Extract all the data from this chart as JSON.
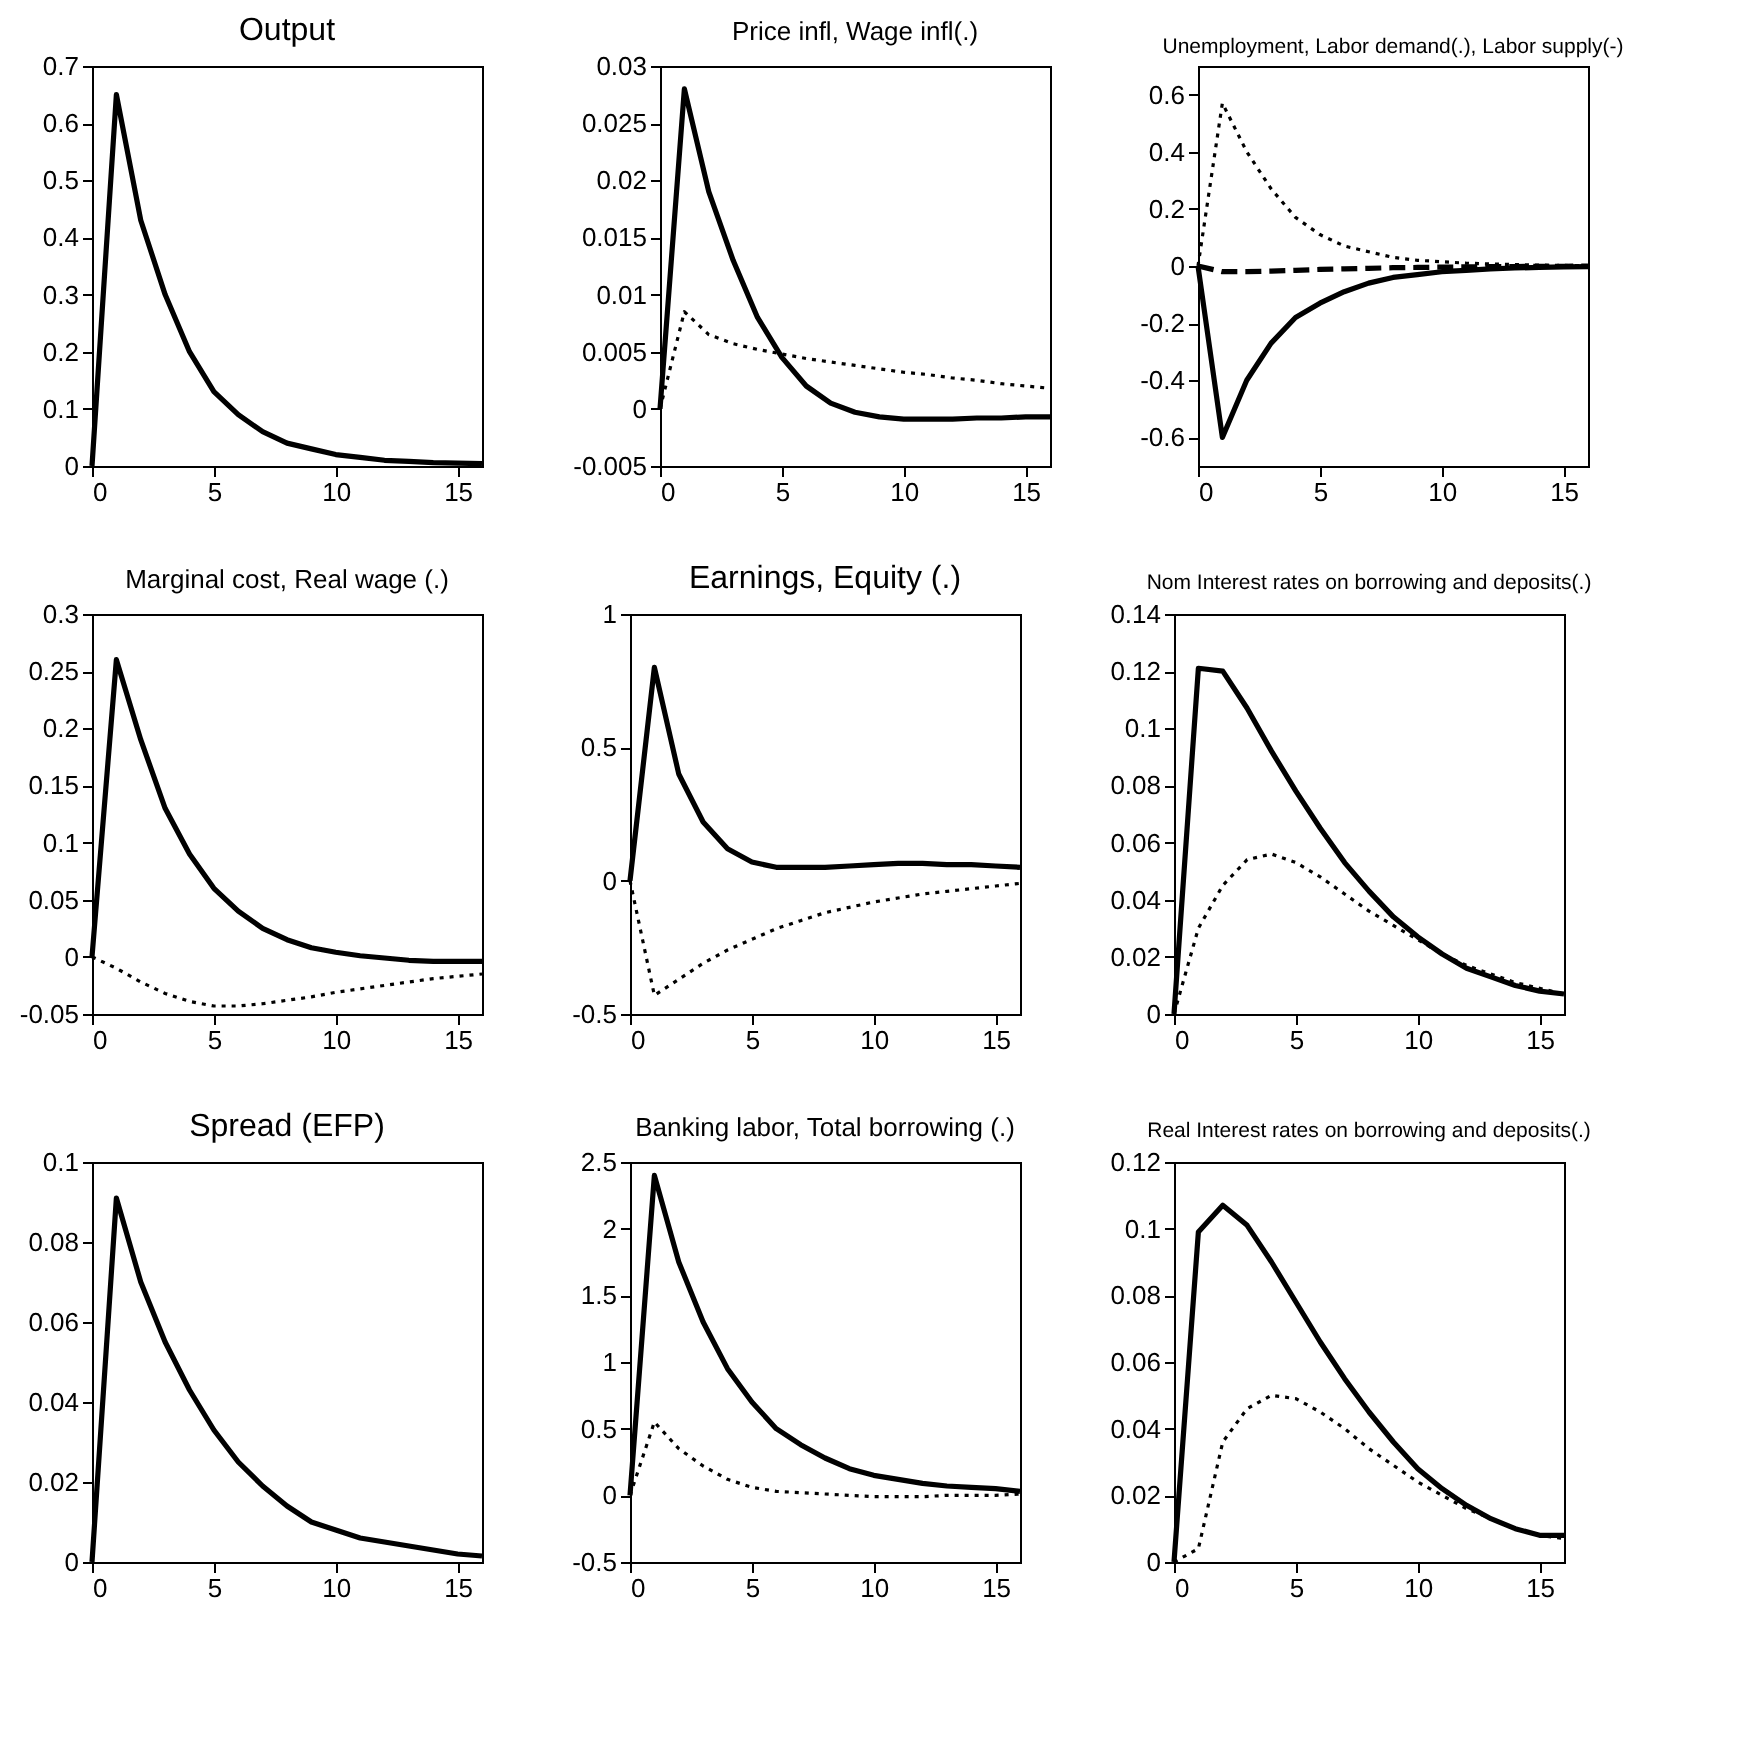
{
  "chart_data": [
    {
      "type": "line",
      "title": "Output",
      "x": [
        0,
        1,
        2,
        3,
        4,
        5,
        6,
        7,
        8,
        9,
        10,
        11,
        12,
        13,
        14,
        15,
        16
      ],
      "xlim": [
        0,
        16
      ],
      "xticks": [
        0,
        5,
        10,
        15
      ],
      "ylim": [
        0,
        0.7
      ],
      "yticks": [
        0,
        0.1,
        0.2,
        0.3,
        0.4,
        0.5,
        0.6,
        0.7
      ],
      "grid": false,
      "series": [
        {
          "color": "#000000",
          "line_style": "solid",
          "values": [
            0,
            0.65,
            0.43,
            0.3,
            0.2,
            0.13,
            0.09,
            0.06,
            0.04,
            0.03,
            0.02,
            0.015,
            0.01,
            0.008,
            0.006,
            0.005,
            0.004
          ]
        }
      ]
    },
    {
      "type": "line",
      "title": "Price infl, Wage infl(.)",
      "x": [
        0,
        1,
        2,
        3,
        4,
        5,
        6,
        7,
        8,
        9,
        10,
        11,
        12,
        13,
        14,
        15,
        16
      ],
      "xlim": [
        0,
        16
      ],
      "xticks": [
        0,
        5,
        10,
        15
      ],
      "ylim": [
        -0.005,
        0.03
      ],
      "yticks": [
        -0.005,
        0,
        0.005,
        0.01,
        0.015,
        0.02,
        0.025,
        0.03
      ],
      "grid": false,
      "series": [
        {
          "color": "#000000",
          "line_style": "solid",
          "values": [
            0,
            0.028,
            0.019,
            0.013,
            0.008,
            0.0045,
            0.002,
            0.0005,
            -0.0003,
            -0.0007,
            -0.0009,
            -0.0009,
            -0.0009,
            -0.0008,
            -0.0008,
            -0.0007,
            -0.0007
          ]
        },
        {
          "color": "#000000",
          "line_style": "dotted",
          "values": [
            0,
            0.0085,
            0.0065,
            0.0057,
            0.0052,
            0.0048,
            0.0044,
            0.0041,
            0.0038,
            0.0035,
            0.0032,
            0.003,
            0.0027,
            0.0025,
            0.0022,
            0.002,
            0.0018
          ]
        }
      ]
    },
    {
      "type": "line",
      "title": "Unemployment, Labor demand(.), Labor supply(-)",
      "x": [
        0,
        1,
        2,
        3,
        4,
        5,
        6,
        7,
        8,
        9,
        10,
        11,
        12,
        13,
        14,
        15,
        16
      ],
      "xlim": [
        0,
        16
      ],
      "xticks": [
        0,
        5,
        10,
        15
      ],
      "ylim": [
        -0.7,
        0.7
      ],
      "yticks": [
        -0.6,
        -0.4,
        -0.2,
        0,
        0.2,
        0.4,
        0.6
      ],
      "grid": false,
      "series": [
        {
          "color": "#000000",
          "line_style": "solid",
          "values": [
            0,
            -0.6,
            -0.4,
            -0.27,
            -0.18,
            -0.13,
            -0.09,
            -0.06,
            -0.04,
            -0.03,
            -0.02,
            -0.015,
            -0.01,
            -0.007,
            -0.005,
            -0.003,
            -0.002
          ]
        },
        {
          "color": "#000000",
          "line_style": "dotted",
          "values": [
            0,
            0.57,
            0.4,
            0.27,
            0.17,
            0.11,
            0.07,
            0.05,
            0.03,
            0.02,
            0.015,
            0.01,
            0.007,
            0.005,
            0.003,
            0.002,
            0.001
          ]
        },
        {
          "color": "#000000",
          "line_style": "dashed",
          "values": [
            0,
            -0.02,
            -0.02,
            -0.018,
            -0.015,
            -0.012,
            -0.01,
            -0.008,
            -0.006,
            -0.005,
            -0.004,
            -0.003,
            -0.002,
            -0.002,
            -0.001,
            -0.001,
            0
          ]
        }
      ]
    },
    {
      "type": "line",
      "title": "Marginal cost, Real wage (.)",
      "x": [
        0,
        1,
        2,
        3,
        4,
        5,
        6,
        7,
        8,
        9,
        10,
        11,
        12,
        13,
        14,
        15,
        16
      ],
      "xlim": [
        0,
        16
      ],
      "xticks": [
        0,
        5,
        10,
        15
      ],
      "ylim": [
        -0.05,
        0.3
      ],
      "yticks": [
        -0.05,
        0,
        0.05,
        0.1,
        0.15,
        0.2,
        0.25,
        0.3
      ],
      "grid": false,
      "series": [
        {
          "color": "#000000",
          "line_style": "solid",
          "values": [
            0,
            0.26,
            0.19,
            0.13,
            0.09,
            0.06,
            0.04,
            0.025,
            0.015,
            0.008,
            0.004,
            0.001,
            -0.001,
            -0.003,
            -0.004,
            -0.004,
            -0.004
          ]
        },
        {
          "color": "#000000",
          "line_style": "dotted",
          "values": [
            0,
            -0.01,
            -0.022,
            -0.032,
            -0.039,
            -0.043,
            -0.043,
            -0.041,
            -0.038,
            -0.035,
            -0.031,
            -0.028,
            -0.025,
            -0.022,
            -0.019,
            -0.017,
            -0.015
          ]
        }
      ]
    },
    {
      "type": "line",
      "title": "Earnings, Equity (.)",
      "x": [
        0,
        1,
        2,
        3,
        4,
        5,
        6,
        7,
        8,
        9,
        10,
        11,
        12,
        13,
        14,
        15,
        16
      ],
      "xlim": [
        0,
        16
      ],
      "xticks": [
        0,
        5,
        10,
        15
      ],
      "ylim": [
        -0.5,
        1
      ],
      "yticks": [
        -0.5,
        0,
        0.5,
        1
      ],
      "grid": false,
      "series": [
        {
          "color": "#000000",
          "line_style": "solid",
          "values": [
            0,
            0.8,
            0.4,
            0.22,
            0.12,
            0.07,
            0.05,
            0.05,
            0.05,
            0.055,
            0.06,
            0.065,
            0.065,
            0.06,
            0.06,
            0.055,
            0.05
          ]
        },
        {
          "color": "#000000",
          "line_style": "dotted",
          "values": [
            0,
            -0.43,
            -0.37,
            -0.31,
            -0.26,
            -0.22,
            -0.18,
            -0.15,
            -0.12,
            -0.1,
            -0.08,
            -0.065,
            -0.05,
            -0.04,
            -0.03,
            -0.02,
            -0.01
          ]
        }
      ]
    },
    {
      "type": "line",
      "title": "Nom Interest rates on borrowing and deposits(.)",
      "x": [
        0,
        1,
        2,
        3,
        4,
        5,
        6,
        7,
        8,
        9,
        10,
        11,
        12,
        13,
        14,
        15,
        16
      ],
      "xlim": [
        0,
        16
      ],
      "xticks": [
        0,
        5,
        10,
        15
      ],
      "ylim": [
        0,
        0.14
      ],
      "yticks": [
        0,
        0.02,
        0.04,
        0.06,
        0.08,
        0.1,
        0.12,
        0.14
      ],
      "grid": false,
      "series": [
        {
          "color": "#000000",
          "line_style": "solid",
          "values": [
            0,
            0.121,
            0.12,
            0.107,
            0.092,
            0.078,
            0.065,
            0.053,
            0.043,
            0.034,
            0.027,
            0.021,
            0.016,
            0.013,
            0.01,
            0.008,
            0.007
          ]
        },
        {
          "color": "#000000",
          "line_style": "dotted",
          "values": [
            0,
            0.03,
            0.045,
            0.054,
            0.056,
            0.053,
            0.048,
            0.042,
            0.036,
            0.031,
            0.026,
            0.021,
            0.017,
            0.014,
            0.011,
            0.009,
            0.007
          ]
        }
      ]
    },
    {
      "type": "line",
      "title": "Spread (EFP)",
      "x": [
        0,
        1,
        2,
        3,
        4,
        5,
        6,
        7,
        8,
        9,
        10,
        11,
        12,
        13,
        14,
        15,
        16
      ],
      "xlim": [
        0,
        16
      ],
      "xticks": [
        0,
        5,
        10,
        15
      ],
      "ylim": [
        0,
        0.1
      ],
      "yticks": [
        0,
        0.02,
        0.04,
        0.06,
        0.08,
        0.1
      ],
      "grid": false,
      "series": [
        {
          "color": "#000000",
          "line_style": "solid",
          "values": [
            0,
            0.091,
            0.07,
            0.055,
            0.043,
            0.033,
            0.025,
            0.019,
            0.014,
            0.01,
            0.008,
            0.006,
            0.005,
            0.004,
            0.003,
            0.002,
            0.0015
          ]
        }
      ]
    },
    {
      "type": "line",
      "title": "Banking labor, Total borrowing (.)",
      "x": [
        0,
        1,
        2,
        3,
        4,
        5,
        6,
        7,
        8,
        9,
        10,
        11,
        12,
        13,
        14,
        15,
        16
      ],
      "xlim": [
        0,
        16
      ],
      "xticks": [
        0,
        5,
        10,
        15
      ],
      "ylim": [
        -0.5,
        2.5
      ],
      "yticks": [
        -0.5,
        0,
        0.5,
        1,
        1.5,
        2,
        2.5
      ],
      "grid": false,
      "series": [
        {
          "color": "#000000",
          "line_style": "solid",
          "values": [
            0,
            2.4,
            1.75,
            1.3,
            0.95,
            0.7,
            0.5,
            0.38,
            0.28,
            0.2,
            0.15,
            0.12,
            0.09,
            0.07,
            0.06,
            0.05,
            0.03
          ]
        },
        {
          "color": "#000000",
          "line_style": "dotted",
          "values": [
            0,
            0.55,
            0.35,
            0.22,
            0.12,
            0.06,
            0.03,
            0.02,
            0.01,
            0,
            -0.01,
            -0.01,
            -0.01,
            0,
            0,
            0,
            0.01
          ]
        }
      ]
    },
    {
      "type": "line",
      "title": "Real Interest rates on borrowing and deposits(.)",
      "x": [
        0,
        1,
        2,
        3,
        4,
        5,
        6,
        7,
        8,
        9,
        10,
        11,
        12,
        13,
        14,
        15,
        16
      ],
      "xlim": [
        0,
        16
      ],
      "xticks": [
        0,
        5,
        10,
        15
      ],
      "ylim": [
        0,
        0.12
      ],
      "yticks": [
        0,
        0.02,
        0.04,
        0.06,
        0.08,
        0.1,
        0.12
      ],
      "grid": false,
      "series": [
        {
          "color": "#000000",
          "line_style": "solid",
          "values": [
            0,
            0.099,
            0.107,
            0.101,
            0.09,
            0.078,
            0.066,
            0.055,
            0.045,
            0.036,
            0.028,
            0.022,
            0.017,
            0.013,
            0.01,
            0.008,
            0.008
          ]
        },
        {
          "color": "#000000",
          "line_style": "dotted",
          "values": [
            0,
            0.004,
            0.036,
            0.046,
            0.05,
            0.049,
            0.045,
            0.04,
            0.034,
            0.029,
            0.024,
            0.02,
            0.016,
            0.013,
            0.01,
            0.008,
            0.007
          ]
        }
      ]
    }
  ]
}
